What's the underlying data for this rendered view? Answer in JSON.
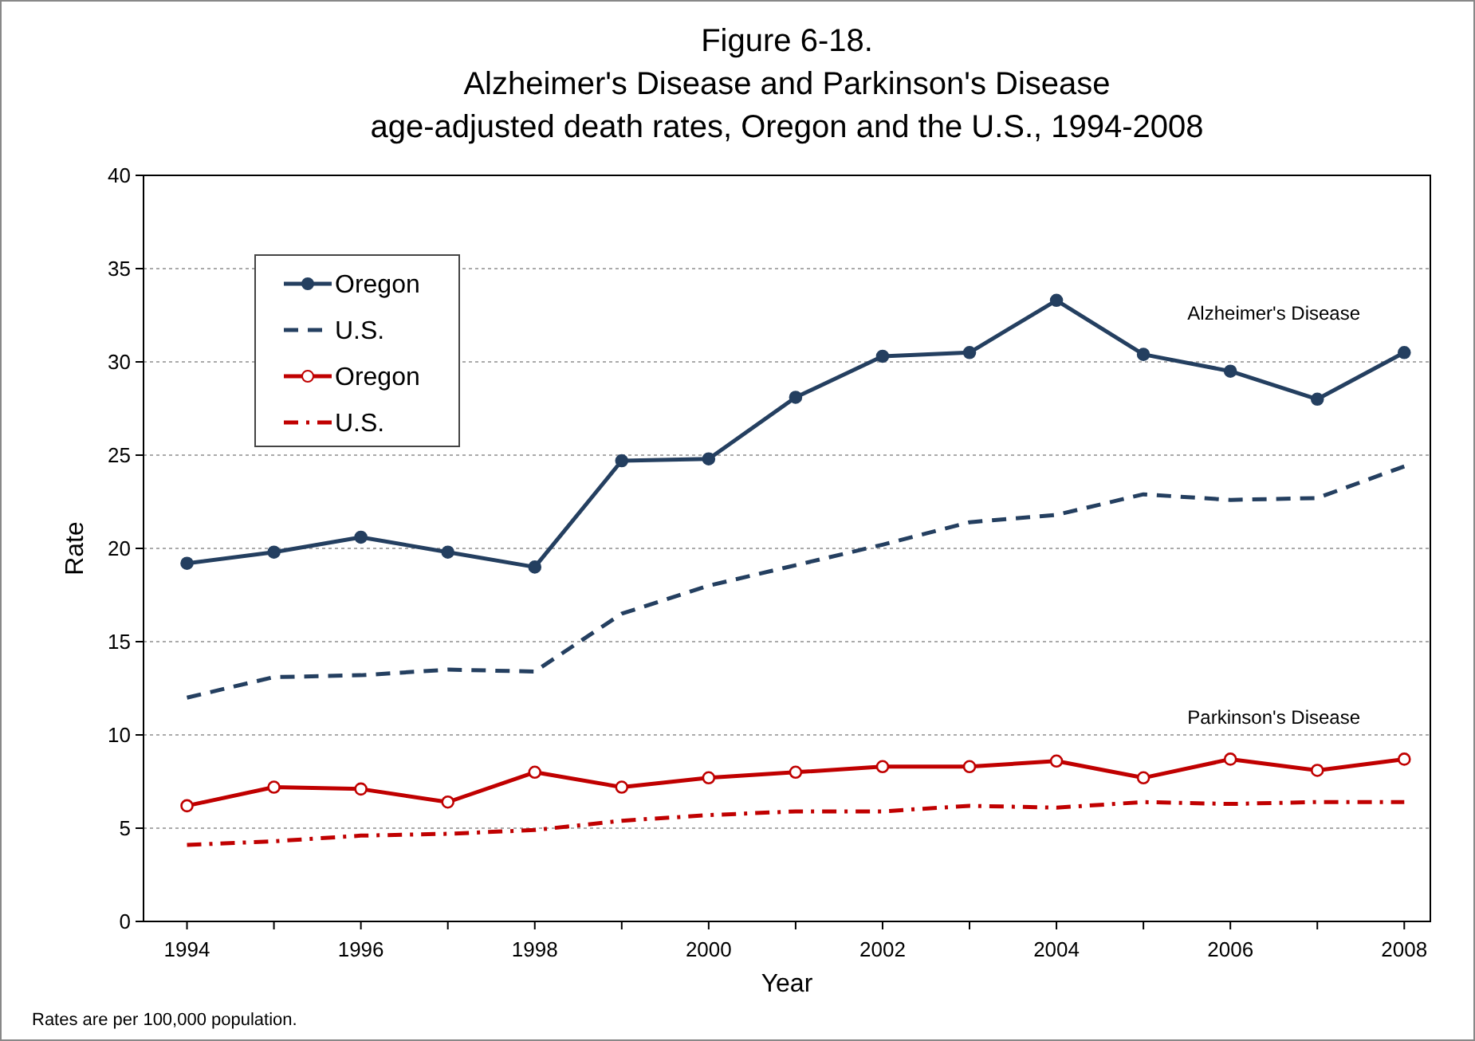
{
  "chart_data": {
    "type": "line",
    "title": "Figure 6-18.\nAlzheimer's Disease and Parkinson's Disease\nage-adjusted death rates, Oregon and the U.S., 1994-2008",
    "xlabel": "Year",
    "ylabel": "Rate",
    "x": [
      1994,
      1995,
      1996,
      1997,
      1998,
      1999,
      2000,
      2001,
      2002,
      2003,
      2004,
      2005,
      2006,
      2007,
      2008
    ],
    "series": [
      {
        "name": "Oregon",
        "color": "#243f60",
        "marker": "circle",
        "line_style": "solid",
        "values": [
          19.2,
          19.8,
          20.6,
          19.8,
          19.0,
          24.7,
          24.8,
          28.1,
          30.3,
          30.5,
          33.3,
          30.4,
          29.5,
          28.0,
          30.5
        ]
      },
      {
        "name": "U.S.",
        "color": "#243f60",
        "marker": "none",
        "line_style": "dashed",
        "values": [
          12.0,
          13.1,
          13.2,
          13.5,
          13.4,
          16.5,
          18.0,
          19.1,
          20.2,
          21.4,
          21.8,
          22.9,
          22.6,
          22.7,
          24.4
        ]
      },
      {
        "name": "Oregon",
        "color": "#c00000",
        "marker": "circle",
        "line_style": "solid",
        "values": [
          6.2,
          7.2,
          7.1,
          6.4,
          8.0,
          7.2,
          7.7,
          8.0,
          8.3,
          8.3,
          8.6,
          7.7,
          8.7,
          8.1,
          8.7
        ]
      },
      {
        "name": "U.S.",
        "color": "#c00000",
        "marker": "none",
        "line_style": "dashdot",
        "values": [
          4.1,
          4.3,
          4.6,
          4.7,
          4.9,
          5.4,
          5.7,
          5.9,
          5.9,
          6.2,
          6.1,
          6.4,
          6.3,
          6.4,
          6.4
        ]
      }
    ],
    "xlim": [
      1993.5,
      2008.3
    ],
    "xticks": [
      1994,
      {
        "value": 1995,
        "label": null
      },
      1996,
      {
        "value": 1997,
        "label": null
      },
      1998,
      {
        "value": 1999,
        "label": null
      },
      2000,
      {
        "value": 2001,
        "label": null
      },
      2002,
      {
        "value": 2003,
        "label": null
      },
      2004,
      {
        "value": 2005,
        "label": null
      },
      2006,
      {
        "value": 2007,
        "label": null
      },
      2008
    ],
    "ylim": [
      0,
      40
    ],
    "yticks": [
      0,
      5,
      10,
      15,
      20,
      25,
      30,
      35,
      40
    ],
    "grid": "y",
    "legend": "top left",
    "annotations": [
      "Alzheimer's Disease",
      "Parkinson's Disease",
      "Rates are per 100,000 population."
    ]
  }
}
